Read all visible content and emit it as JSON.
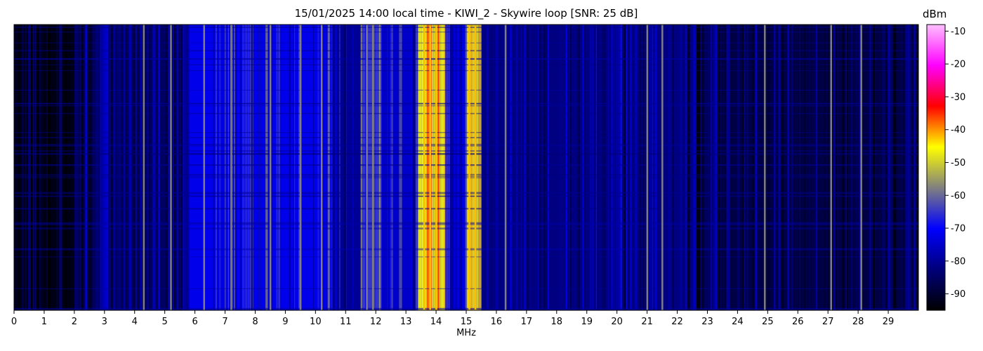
{
  "chart_data": {
    "type": "heatmap",
    "title": "15/01/2025 14:00 local time - KIWI_2 - Skywire loop [SNR: 25 dB]",
    "xlabel": "MHz",
    "ylabel": "",
    "xlim": [
      0,
      30
    ],
    "x_ticks": [
      "0",
      "1",
      "2",
      "3",
      "4",
      "5",
      "6",
      "7",
      "8",
      "9",
      "10",
      "11",
      "12",
      "13",
      "14",
      "15",
      "16",
      "17",
      "18",
      "19",
      "20",
      "21",
      "22",
      "23",
      "24",
      "25",
      "26",
      "27",
      "28",
      "29"
    ],
    "colorbar": {
      "label": "dBm",
      "range": [
        -95,
        -8
      ],
      "ticks": [
        "-10",
        "-20",
        "-30",
        "-40",
        "-50",
        "-60",
        "-70",
        "-80",
        "-90"
      ],
      "colormap": [
        "#000000",
        "#00007a",
        "#0000ff",
        "#808080",
        "#ffff00",
        "#ff0000",
        "#ff00ff",
        "#ffc0ff"
      ]
    },
    "approx_levels": [
      {
        "mhz_from": 0,
        "mhz_to": 2,
        "dbm": -93
      },
      {
        "mhz_from": 2,
        "mhz_to": 5.8,
        "dbm": -85
      },
      {
        "mhz_from": 5.8,
        "mhz_to": 10.5,
        "dbm": -72
      },
      {
        "mhz_from": 10.5,
        "mhz_to": 11.5,
        "dbm": -80
      },
      {
        "mhz_from": 11.5,
        "mhz_to": 12.2,
        "dbm": -65
      },
      {
        "mhz_from": 12.2,
        "mhz_to": 13.4,
        "dbm": -75
      },
      {
        "mhz_from": 13.4,
        "mhz_to": 14.3,
        "dbm": -48
      },
      {
        "mhz_from": 14.3,
        "mhz_to": 15.0,
        "dbm": -74
      },
      {
        "mhz_from": 15.0,
        "mhz_to": 15.5,
        "dbm": -50
      },
      {
        "mhz_from": 15.5,
        "mhz_to": 22.3,
        "dbm": -82
      },
      {
        "mhz_from": 22.3,
        "mhz_to": 30,
        "dbm": -88
      }
    ],
    "strong_carriers_mhz": [
      4.3,
      5.2,
      6.3,
      7.2,
      8.5,
      9.5,
      10.2,
      11.7,
      11.9,
      13.6,
      13.8,
      14.0,
      15.1,
      15.3,
      16.3,
      21.0,
      21.5,
      24.9,
      27.1,
      28.1
    ],
    "grid": false,
    "legend": "none"
  }
}
